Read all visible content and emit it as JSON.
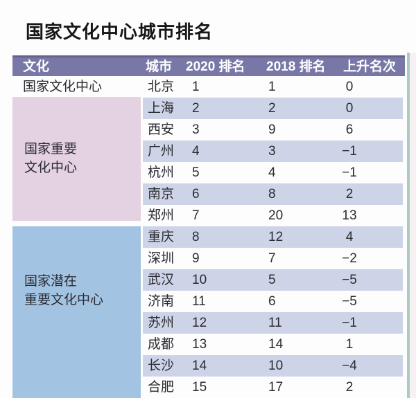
{
  "page": {
    "title": "国家文化中心城市排名"
  },
  "table": {
    "columns": {
      "culture": "文化",
      "city": "城市",
      "rank2020": "2020 排名",
      "rank2018": "2018 排名",
      "change": "上升名次"
    },
    "groups": [
      {
        "name": "国家文化中心",
        "lines": [
          "国家文化中心"
        ],
        "cities": [
          "北京"
        ]
      },
      {
        "name": "国家重要文化中心",
        "lines": [
          "国家重要",
          "文化中心"
        ],
        "cities": [
          "上海",
          "西安",
          "广州",
          "杭州",
          "南京",
          "郑州"
        ]
      },
      {
        "name": "国家潜在重要文化中心",
        "lines": [
          "国家潜在",
          "重要文化中心"
        ],
        "cities": [
          "重庆",
          "深圳",
          "武汉",
          "济南",
          "苏州",
          "成都",
          "长沙",
          "合肥"
        ]
      }
    ],
    "rows": [
      {
        "city": "北京",
        "rank2020": "1",
        "rank2018": "1",
        "change": "0"
      },
      {
        "city": "上海",
        "rank2020": "2",
        "rank2018": "2",
        "change": "0"
      },
      {
        "city": "西安",
        "rank2020": "3",
        "rank2018": "9",
        "change": "6"
      },
      {
        "city": "广州",
        "rank2020": "4",
        "rank2018": "3",
        "change": "−1"
      },
      {
        "city": "杭州",
        "rank2020": "5",
        "rank2018": "4",
        "change": "−1"
      },
      {
        "city": "南京",
        "rank2020": "6",
        "rank2018": "8",
        "change": "2"
      },
      {
        "city": "郑州",
        "rank2020": "7",
        "rank2018": "20",
        "change": "13"
      },
      {
        "city": "重庆",
        "rank2020": "8",
        "rank2018": "12",
        "change": "4"
      },
      {
        "city": "深圳",
        "rank2020": "9",
        "rank2018": "7",
        "change": "−2"
      },
      {
        "city": "武汉",
        "rank2020": "10",
        "rank2018": "5",
        "change": "−5"
      },
      {
        "city": "济南",
        "rank2020": "11",
        "rank2018": "6",
        "change": "−5"
      },
      {
        "city": "苏州",
        "rank2020": "12",
        "rank2018": "11",
        "change": "−1"
      },
      {
        "city": "成都",
        "rank2020": "13",
        "rank2018": "14",
        "change": "1"
      },
      {
        "city": "长沙",
        "rank2020": "14",
        "rank2018": "10",
        "change": "−4"
      },
      {
        "city": "合肥",
        "rank2020": "15",
        "rank2018": "17",
        "change": "2"
      }
    ]
  },
  "chart_data": {
    "type": "table",
    "title": "国家文化中心城市排名",
    "columns": [
      "文化",
      "城市",
      "2020 排名",
      "2018 排名",
      "上升名次"
    ],
    "rows": [
      [
        "国家文化中心",
        "北京",
        1,
        1,
        0
      ],
      [
        "国家重要文化中心",
        "上海",
        2,
        2,
        0
      ],
      [
        "国家重要文化中心",
        "西安",
        3,
        9,
        6
      ],
      [
        "国家重要文化中心",
        "广州",
        4,
        3,
        -1
      ],
      [
        "国家重要文化中心",
        "杭州",
        5,
        4,
        -1
      ],
      [
        "国家重要文化中心",
        "南京",
        6,
        8,
        2
      ],
      [
        "国家重要文化中心",
        "郑州",
        7,
        20,
        13
      ],
      [
        "国家潜在重要文化中心",
        "重庆",
        8,
        12,
        4
      ],
      [
        "国家潜在重要文化中心",
        "深圳",
        9,
        7,
        -2
      ],
      [
        "国家潜在重要文化中心",
        "武汉",
        10,
        5,
        -5
      ],
      [
        "国家潜在重要文化中心",
        "济南",
        11,
        6,
        -5
      ],
      [
        "国家潜在重要文化中心",
        "苏州",
        12,
        11,
        -1
      ],
      [
        "国家潜在重要文化中心",
        "成都",
        13,
        14,
        1
      ],
      [
        "国家潜在重要文化中心",
        "长沙",
        14,
        10,
        -4
      ],
      [
        "国家潜在重要文化中心",
        "合肥",
        15,
        17,
        2
      ]
    ]
  },
  "colors": {
    "header_bg": "#7877a6",
    "header_top_edge": "#64628f",
    "header_text": "#ffffff",
    "row_stripe": "#cdd4e8",
    "group_national_important_bg": "#e4d1e2",
    "group_national_potential_bg": "#a2c3e2",
    "card_edge_line": "#a9cbc4",
    "text": "#2b2b31"
  }
}
